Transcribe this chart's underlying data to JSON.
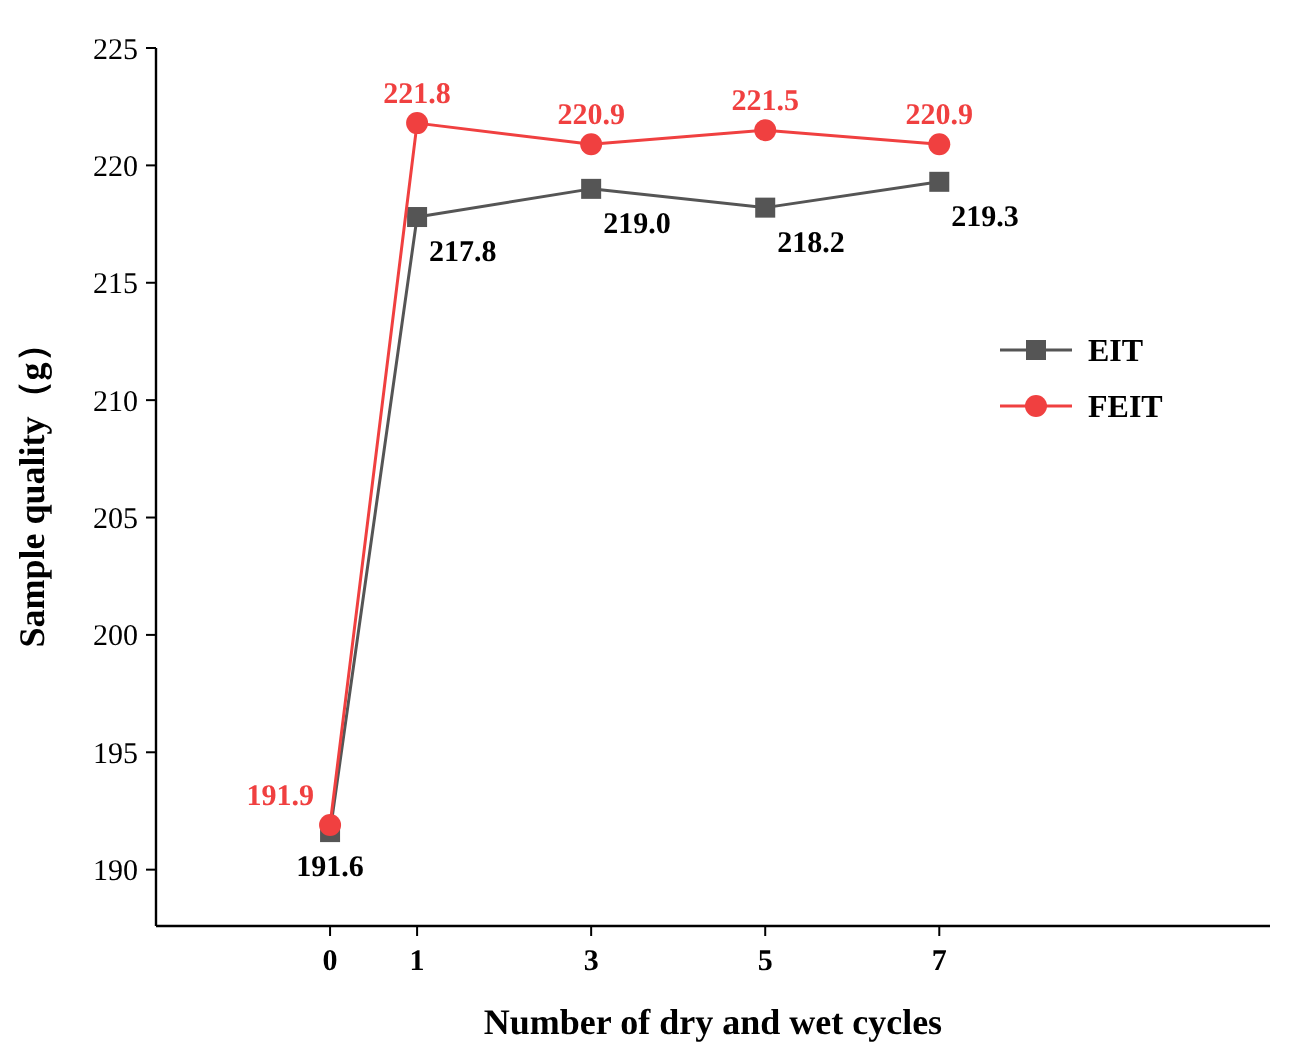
{
  "chart_data": {
    "type": "line",
    "xlabel": "Number of dry and wet cycles",
    "ylabel": "Sample quality（g）",
    "x": [
      0,
      1,
      3,
      5,
      7
    ],
    "series": [
      {
        "name": "EIT",
        "color": "#555555",
        "marker": "square",
        "values": [
          191.6,
          217.8,
          219.0,
          218.2,
          219.3
        ],
        "value_labels": [
          "191.6",
          "217.8",
          "219.0",
          "218.2",
          "219.3"
        ]
      },
      {
        "name": "FEIT",
        "color": "#f04040",
        "marker": "circle",
        "values": [
          191.9,
          221.8,
          220.9,
          221.5,
          220.9
        ],
        "value_labels": [
          "191.9",
          "221.8",
          "220.9",
          "221.5",
          "220.9"
        ]
      }
    ],
    "xlim": [
      -2,
      10.8
    ],
    "xticks": [
      0,
      1,
      3,
      5,
      7
    ],
    "ylim": [
      187.6,
      225
    ],
    "yticks": [
      190,
      195,
      200,
      205,
      210,
      215,
      220,
      225
    ],
    "legend": "right",
    "grid": false,
    "line_style": "solid"
  }
}
